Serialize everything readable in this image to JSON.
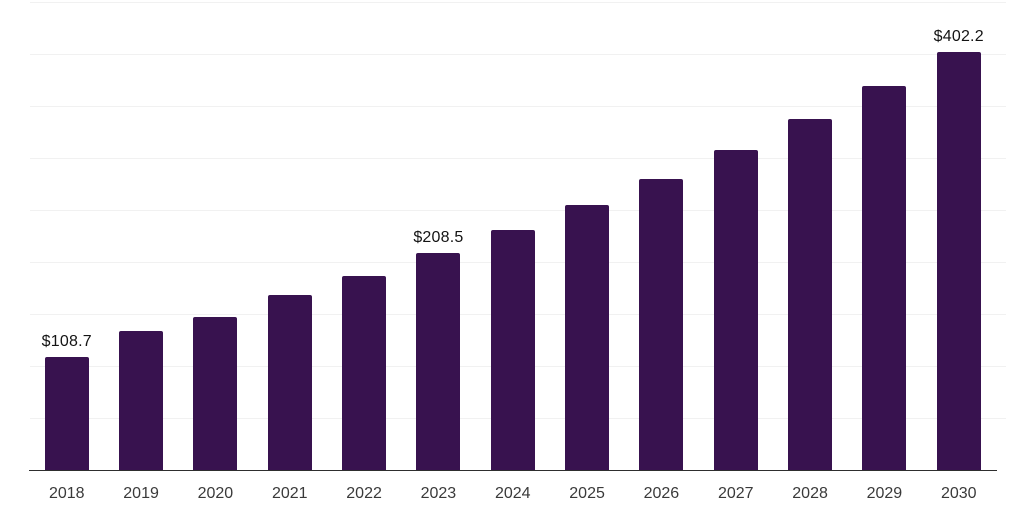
{
  "chart_data": {
    "type": "bar",
    "title": "",
    "xlabel": "",
    "ylabel": "",
    "categories": [
      "2018",
      "2019",
      "2020",
      "2021",
      "2022",
      "2023",
      "2024",
      "2025",
      "2026",
      "2027",
      "2028",
      "2029",
      "2030"
    ],
    "values": [
      108.7,
      134.0,
      147.0,
      168.0,
      186.2,
      208.5,
      230.8,
      255.0,
      280.2,
      308.0,
      337.6,
      369.2,
      402.2
    ],
    "value_labels": [
      "$108.7",
      "",
      "",
      "",
      "",
      "$208.5",
      "",
      "",
      "",
      "",
      "",
      "",
      "$402.2"
    ],
    "ylim": [
      0,
      450
    ],
    "gridline_step": 50,
    "grid": true,
    "yticks_shown": false,
    "legend_position": "none",
    "colors": {
      "bar": "#38124F",
      "gridline": "#f1f1f1",
      "axis_line": "#2e2e2e",
      "x_tick_label": "#3a3a3a",
      "value_label": "#141414",
      "background": "#ffffff"
    }
  }
}
